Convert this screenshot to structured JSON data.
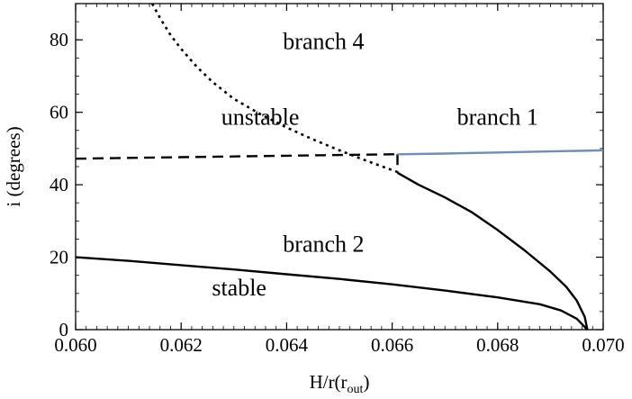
{
  "chart_data": {
    "type": "line",
    "xlabel": "H/r(r",
    "xlabel_subscript": "out",
    "xlabel_close": ")",
    "ylabel": "i (degrees)",
    "xlim": [
      0.06,
      0.07
    ],
    "ylim": [
      0,
      90
    ],
    "xticks": [
      0.06,
      0.062,
      0.064,
      0.066,
      0.068,
      0.07
    ],
    "xtick_labels": [
      "0.060",
      "0.062",
      "0.064",
      "0.066",
      "0.068",
      "0.070"
    ],
    "yticks": [
      0,
      20,
      40,
      60,
      80
    ],
    "ytick_labels": [
      "0",
      "20",
      "40",
      "60",
      "80"
    ],
    "grid": false,
    "annotations": [
      {
        "text": "branch 4",
        "x": 0.0647,
        "y": 77.5
      },
      {
        "text": "unstable",
        "x": 0.0635,
        "y": 56.5
      },
      {
        "text": "branch 1",
        "x": 0.068,
        "y": 56.5
      },
      {
        "text": "branch 2",
        "x": 0.0647,
        "y": 21.5
      },
      {
        "text": "stable",
        "x": 0.0631,
        "y": 9.5
      }
    ],
    "series": [
      {
        "style": "dashed",
        "color": "#000000",
        "x": [
          0.06,
          0.061,
          0.062,
          0.063,
          0.064,
          0.065,
          0.066,
          0.0661
        ],
        "y": [
          47.2,
          47.4,
          47.6,
          47.8,
          48.0,
          48.2,
          48.4,
          48.4
        ]
      },
      {
        "style": "dashed",
        "color": "#000000",
        "x": [
          0.0661,
          0.0661
        ],
        "y": [
          48.4,
          43.3
        ]
      },
      {
        "style": "dotted",
        "color": "#000000",
        "x": [
          0.06145,
          0.0616,
          0.0618,
          0.062,
          0.0623,
          0.0626,
          0.063,
          0.0635,
          0.064,
          0.0645,
          0.065,
          0.0655,
          0.0661
        ],
        "y": [
          90,
          86.0,
          81.3,
          77.5,
          72.5,
          68.3,
          63.7,
          59.5,
          55.8,
          52.5,
          49.5,
          46.7,
          43.5
        ]
      },
      {
        "style": "solid",
        "color": "#6e8eb3",
        "x": [
          0.0661,
          0.067,
          0.068,
          0.069,
          0.07
        ],
        "y": [
          48.4,
          48.6,
          48.9,
          49.2,
          49.5
        ]
      },
      {
        "style": "solid",
        "color": "#000000",
        "x": [
          0.0661,
          0.0665,
          0.067,
          0.0675,
          0.068,
          0.0685,
          0.069,
          0.0693,
          0.0695,
          0.06965,
          0.0697
        ],
        "y": [
          43.3,
          40.0,
          36.5,
          32.5,
          27.5,
          22.0,
          16.0,
          11.8,
          8.0,
          3.5,
          0
        ]
      },
      {
        "style": "solid",
        "color": "#000000",
        "x": [
          0.06,
          0.061,
          0.062,
          0.063,
          0.064,
          0.065,
          0.066,
          0.067,
          0.068,
          0.0688,
          0.0692,
          0.0695,
          0.0697
        ],
        "y": [
          20.0,
          19.0,
          17.8,
          16.6,
          15.3,
          14.0,
          12.5,
          10.8,
          8.9,
          7.0,
          5.3,
          3.0,
          0
        ]
      }
    ]
  }
}
